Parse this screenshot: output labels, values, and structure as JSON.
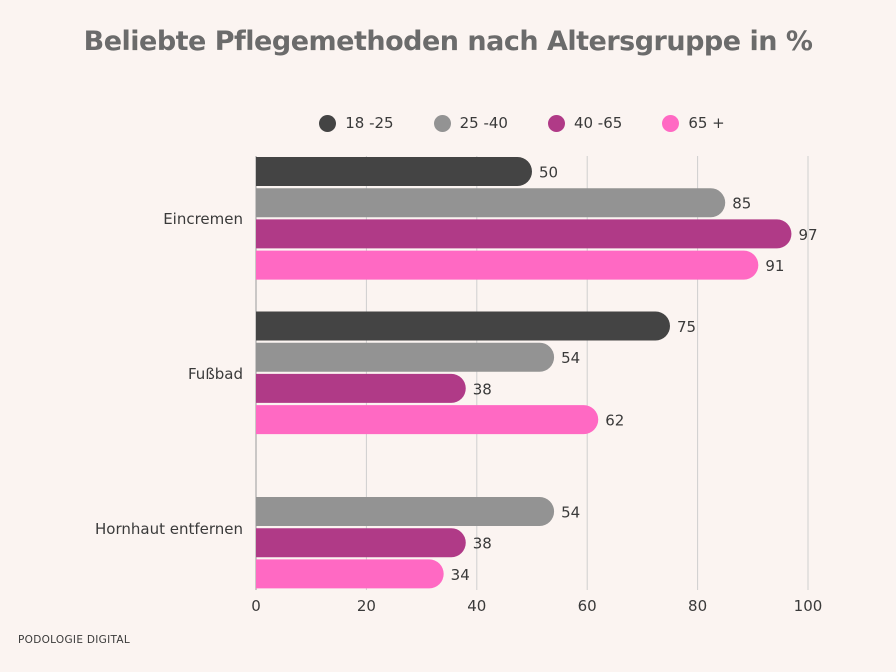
{
  "chart_data": {
    "type": "bar",
    "orientation": "horizontal",
    "title": "Beliebte Pflegemethoden nach Altersgruppe in %",
    "categories": [
      "Eincremen",
      "Fußbad",
      "Hornhaut entfernen"
    ],
    "series": [
      {
        "name": "18 -25",
        "color": "#444444",
        "values": [
          50,
          75,
          null
        ]
      },
      {
        "name": "25 -40",
        "color": "#939393",
        "values": [
          85,
          54,
          54
        ]
      },
      {
        "name": "40 -65",
        "color": "#B03A87",
        "values": [
          97,
          38,
          38
        ]
      },
      {
        "name": "65 +",
        "color": "#FF69C3",
        "values": [
          91,
          62,
          34
        ]
      }
    ],
    "xlim": [
      0,
      100
    ],
    "xticks": [
      0,
      20,
      40,
      60,
      80,
      100
    ],
    "xlabel": "",
    "ylabel": "",
    "grid": true,
    "legend": "top"
  },
  "footer": "PODOLOGIE DIGITAL"
}
